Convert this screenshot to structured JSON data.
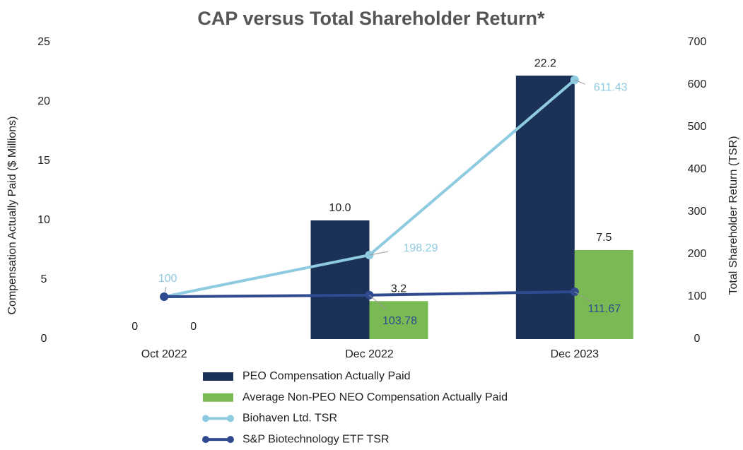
{
  "chart_data": {
    "type": "bar",
    "title": "CAP versus Total Shareholder Return*",
    "ylabel": "Compensation Actually Paid ($ Millions)",
    "y2label": "Total Shareholder Return (TSR)",
    "categories": [
      "Oct 2022",
      "Dec 2022",
      "Dec 2023"
    ],
    "ylim": [
      0,
      25
    ],
    "yticks": [
      0,
      5,
      10,
      15,
      20,
      25
    ],
    "y2lim": [
      0,
      700
    ],
    "y2ticks": [
      0,
      100,
      200,
      300,
      400,
      500,
      600,
      700
    ],
    "grid": false,
    "legend": "bottom",
    "series": [
      {
        "name": "PEO Compensation Actually Paid",
        "type": "bar",
        "color": "#1b3158",
        "values": [
          0,
          10.0,
          22.2
        ],
        "value_labels": [
          "0",
          "10.0",
          "22.2"
        ]
      },
      {
        "name": "Average Non-PEO NEO Compensation Actually Paid",
        "type": "bar",
        "color": "#7aba55",
        "values": [
          0,
          3.2,
          7.5
        ],
        "value_labels": [
          "0",
          "3.2",
          "7.5"
        ]
      },
      {
        "name": "Biohaven Ltd. TSR",
        "type": "line",
        "axis": "y2",
        "color": "#8ecae0",
        "values": [
          100,
          198.29,
          611.43
        ],
        "value_labels": [
          "100",
          "198.29",
          "611.43"
        ]
      },
      {
        "name": "S&P Biotechnology ETF TSR",
        "type": "line",
        "axis": "y2",
        "color": "#2f4a8f",
        "values": [
          100,
          103.78,
          111.67
        ],
        "value_labels": [
          null,
          "103.78",
          "111.67"
        ]
      }
    ]
  }
}
